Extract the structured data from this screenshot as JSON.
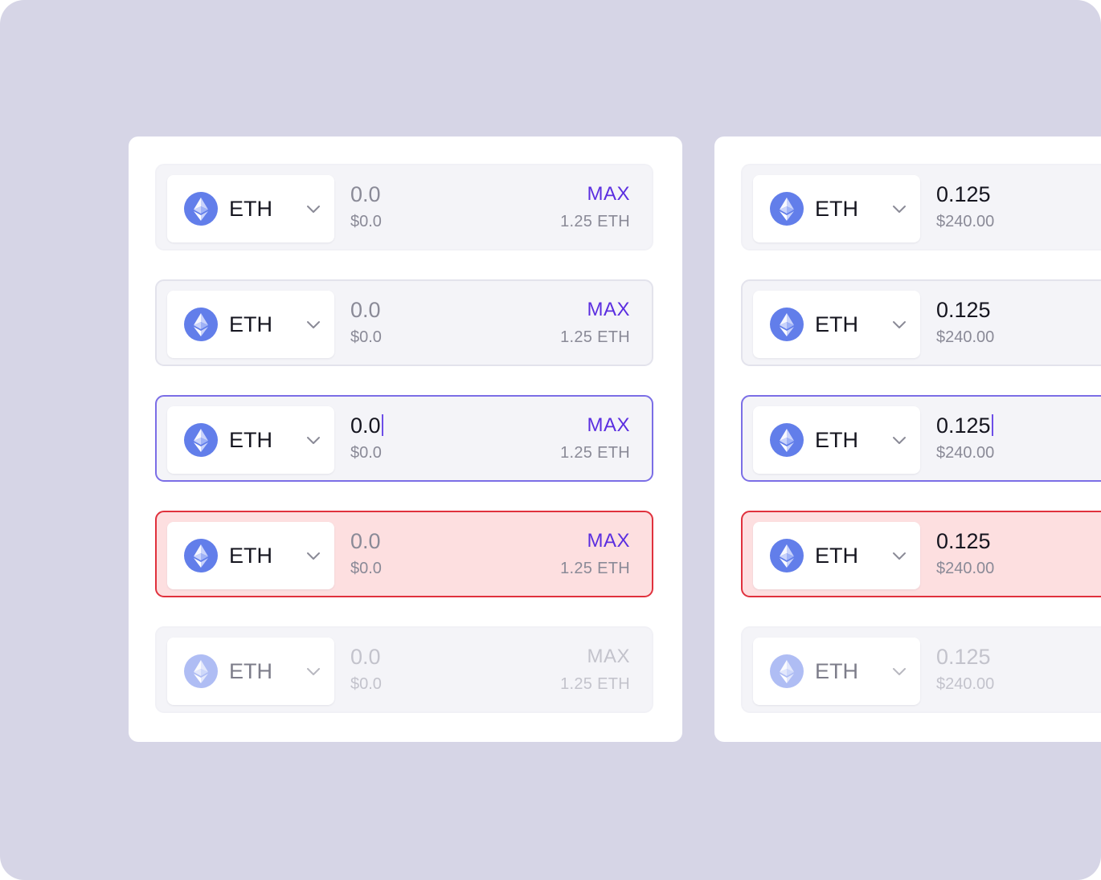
{
  "token": {
    "symbol": "ETH",
    "icon": "ethereum-icon",
    "dropdown_icon": "chevron-down-icon"
  },
  "colors": {
    "background": "#d6d5e6",
    "card": "#ffffff",
    "field_default": "#f4f4f8",
    "focus_border": "#7b6ee6",
    "error_background": "#fddfe0",
    "error_border": "#e0313d",
    "accent": "#5b2ee0",
    "eth_icon": "#627eea"
  },
  "left_panel": {
    "rows": [
      {
        "state": "default",
        "amount": "0.0",
        "fiat": "$0.0",
        "max_label": "MAX",
        "balance": "1.25 ETH"
      },
      {
        "state": "hover",
        "amount": "0.0",
        "fiat": "$0.0",
        "max_label": "MAX",
        "balance": "1.25 ETH"
      },
      {
        "state": "focus",
        "amount": "0.0",
        "fiat": "$0.0",
        "max_label": "MAX",
        "balance": "1.25 ETH"
      },
      {
        "state": "error",
        "amount": "0.0",
        "fiat": "$0.0",
        "max_label": "MAX",
        "balance": "1.25 ETH"
      },
      {
        "state": "disabled",
        "amount": "0.0",
        "fiat": "$0.0",
        "max_label": "MAX",
        "balance": "1.25 ETH"
      }
    ]
  },
  "right_panel": {
    "rows": [
      {
        "state": "default",
        "amount": "0.125",
        "fiat": "$240.00"
      },
      {
        "state": "hover",
        "amount": "0.125",
        "fiat": "$240.00"
      },
      {
        "state": "focus",
        "amount": "0.125",
        "fiat": "$240.00"
      },
      {
        "state": "error",
        "amount": "0.125",
        "fiat": "$240.00"
      },
      {
        "state": "disabled",
        "amount": "0.125",
        "fiat": "$240.00"
      }
    ]
  }
}
